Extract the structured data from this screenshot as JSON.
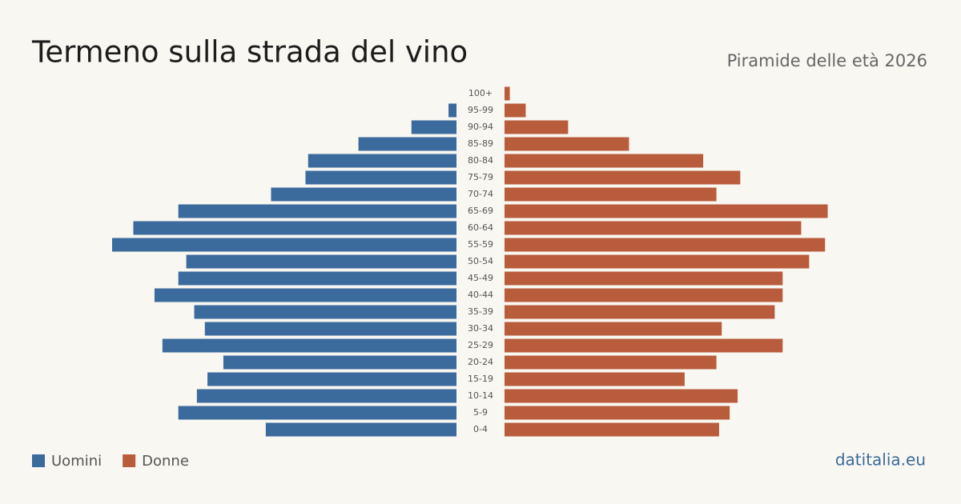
{
  "chart_data": {
    "type": "pyramid",
    "title": "Termeno sulla strada del vino",
    "subtitle": "Piramide delle età 2026",
    "source": "datitalia.eu",
    "categories": [
      "100+",
      "95-99",
      "90-94",
      "85-89",
      "80-84",
      "75-79",
      "70-74",
      "65-69",
      "60-64",
      "55-59",
      "50-54",
      "45-49",
      "40-44",
      "35-39",
      "30-34",
      "25-29",
      "20-24",
      "15-19",
      "10-14",
      "5-9",
      "0-4"
    ],
    "series": [
      {
        "name": "Uomini",
        "color": "#3b6a9c",
        "values": [
          0,
          3,
          17,
          37,
          56,
          57,
          70,
          105,
          122,
          130,
          102,
          105,
          114,
          99,
          95,
          111,
          88,
          94,
          98,
          105,
          72
        ]
      },
      {
        "name": "Donne",
        "color": "#b85c3c",
        "values": [
          2,
          8,
          24,
          47,
          75,
          89,
          80,
          122,
          112,
          121,
          115,
          105,
          105,
          102,
          82,
          105,
          80,
          68,
          88,
          85,
          81
        ]
      }
    ]
  }
}
